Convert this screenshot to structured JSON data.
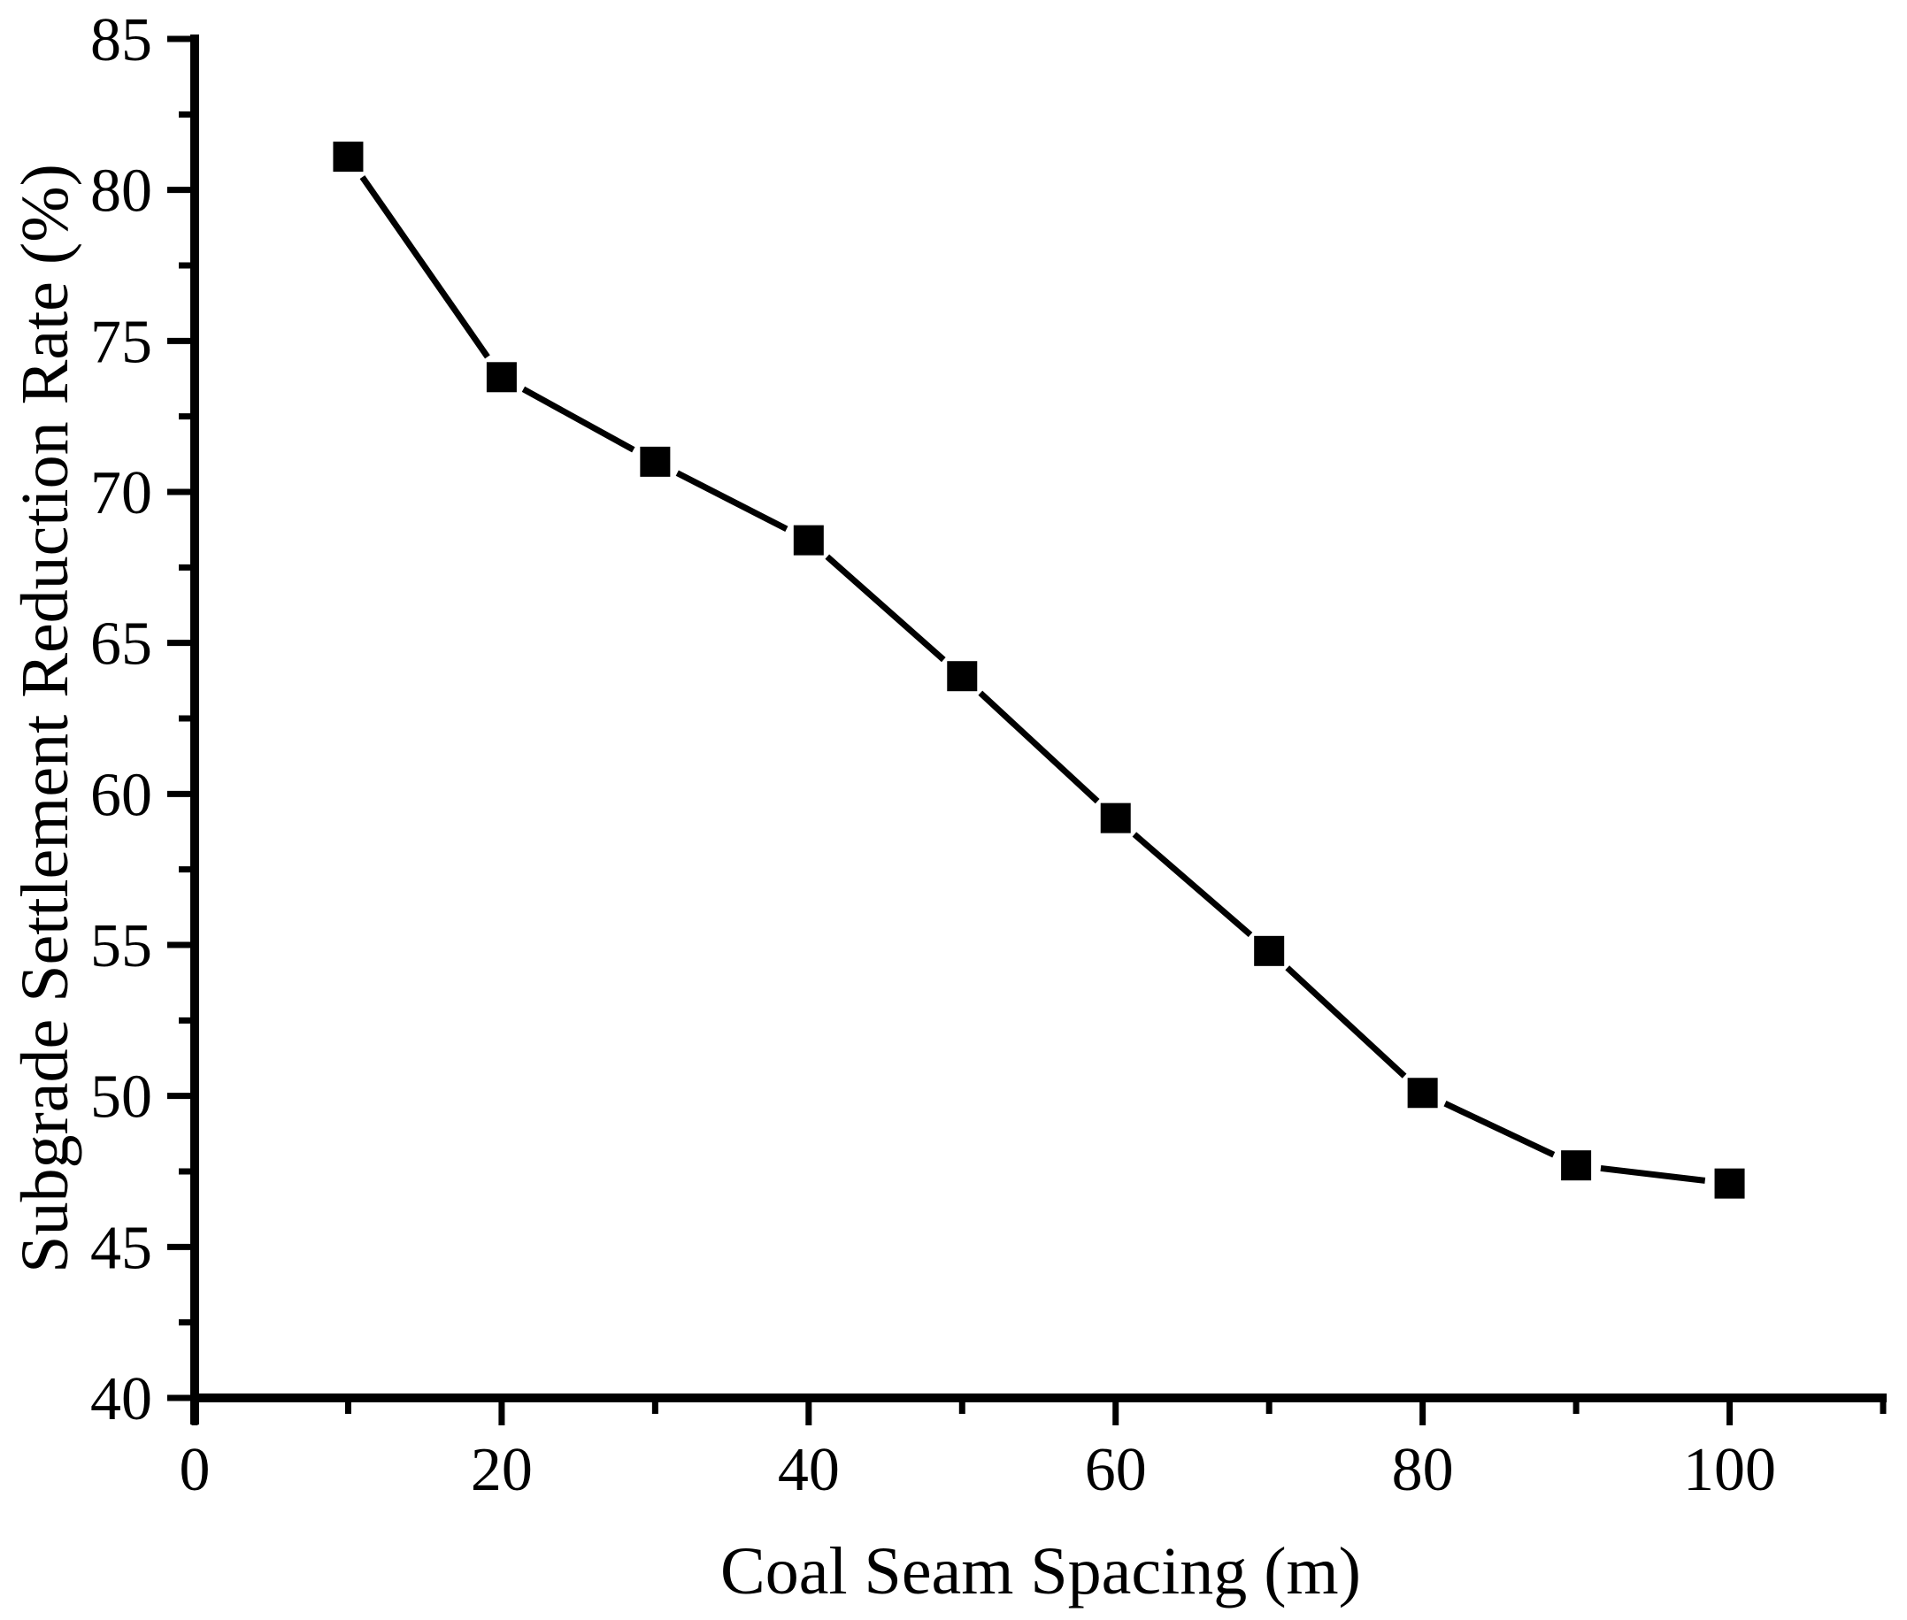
{
  "figure": {
    "background_color": "#ffffff",
    "ink_color": "#000000"
  },
  "chart_data": {
    "type": "line",
    "title": "",
    "xlabel": "Coal Seam Spacing (m)",
    "ylabel": "Subgrade Settlement Reduction Rate (%)",
    "x": [
      10,
      20,
      30,
      40,
      50,
      60,
      70,
      80,
      90,
      100
    ],
    "values": [
      81.1,
      73.8,
      71.0,
      68.4,
      63.9,
      59.2,
      54.8,
      50.1,
      47.7,
      47.1
    ],
    "xlim": [
      0,
      110
    ],
    "ylim": [
      40,
      85
    ],
    "x_major_ticks": [
      0,
      20,
      40,
      60,
      80,
      100
    ],
    "x_minor_ticks": [
      10,
      30,
      50,
      70,
      90,
      110
    ],
    "y_major_ticks": [
      40,
      45,
      50,
      55,
      60,
      65,
      70,
      75,
      80,
      85
    ],
    "y_minor_ticks": [
      42.5,
      47.5,
      52.5,
      57.5,
      62.5,
      67.5,
      72.5,
      77.5,
      82.5
    ],
    "marker": "filled-square",
    "line_color": "#000000",
    "marker_color": "#000000",
    "grid": false,
    "legend": "none",
    "frame": "left-bottom-only",
    "tick_direction": "out"
  }
}
